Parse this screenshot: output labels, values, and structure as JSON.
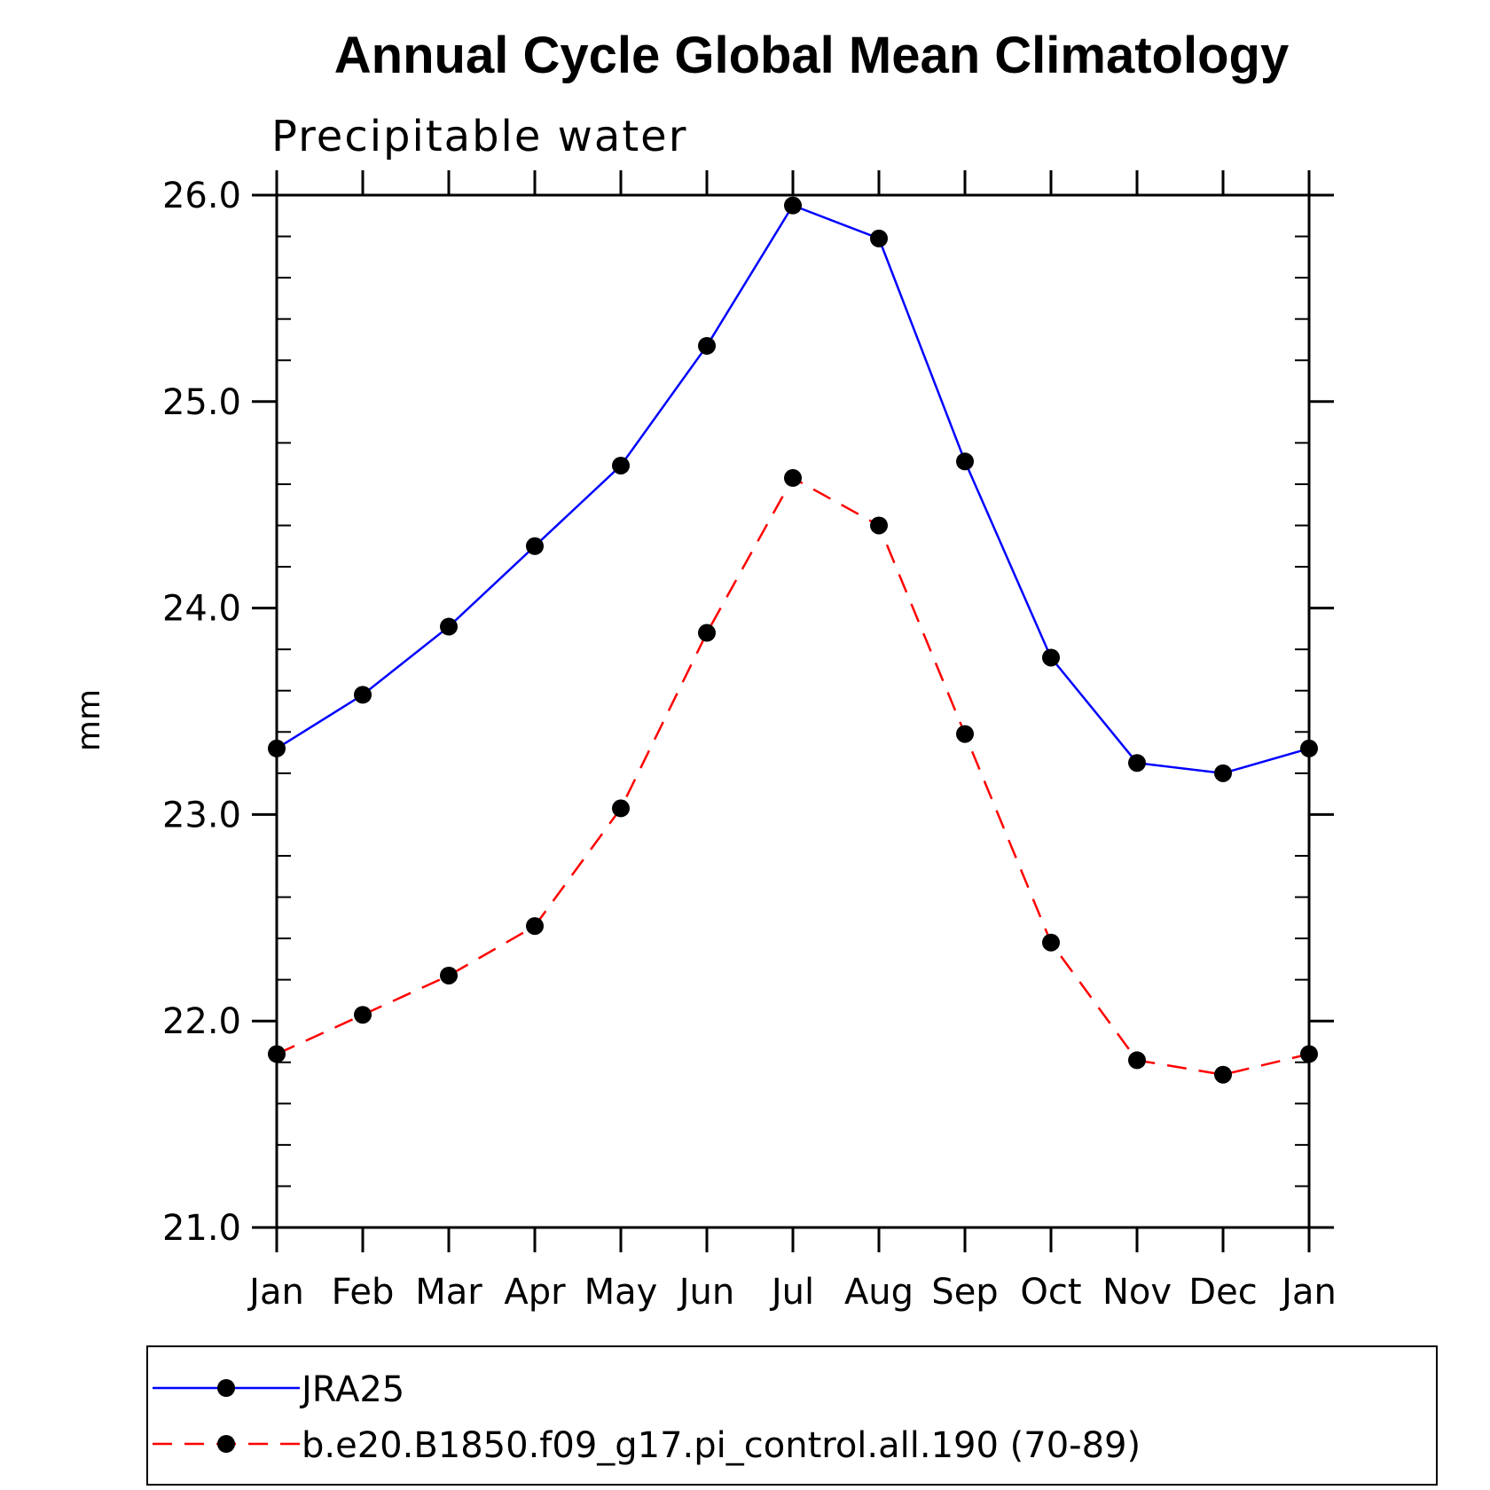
{
  "chart_data": {
    "type": "line",
    "title": "Annual Cycle Global Mean Climatology",
    "subtitle": "Precipitable water",
    "xlabel": "",
    "ylabel": "mm",
    "categories": [
      "Jan",
      "Feb",
      "Mar",
      "Apr",
      "May",
      "Jun",
      "Jul",
      "Aug",
      "Sep",
      "Oct",
      "Nov",
      "Dec",
      "Jan"
    ],
    "ylim": [
      21.0,
      26.0
    ],
    "y_ticks": [
      "21.0",
      "22.0",
      "23.0",
      "24.0",
      "25.0",
      "26.0"
    ],
    "grid": false,
    "legend_position": "bottom",
    "series": [
      {
        "name": "JRA25",
        "color": "#0000ff",
        "line_style": "solid",
        "marker": "filled-circle",
        "values": [
          23.32,
          23.58,
          23.91,
          24.3,
          24.69,
          25.27,
          25.95,
          25.79,
          24.71,
          23.76,
          23.25,
          23.2,
          23.32
        ]
      },
      {
        "name": "b.e20.B1850.f09_g17.pi_control.all.190 (70-89)",
        "color": "#ff0000",
        "line_style": "dashed",
        "marker": "filled-circle",
        "values": [
          21.84,
          22.03,
          22.22,
          22.46,
          23.03,
          23.88,
          24.63,
          24.4,
          23.39,
          22.38,
          21.81,
          21.74,
          21.84
        ]
      }
    ]
  }
}
